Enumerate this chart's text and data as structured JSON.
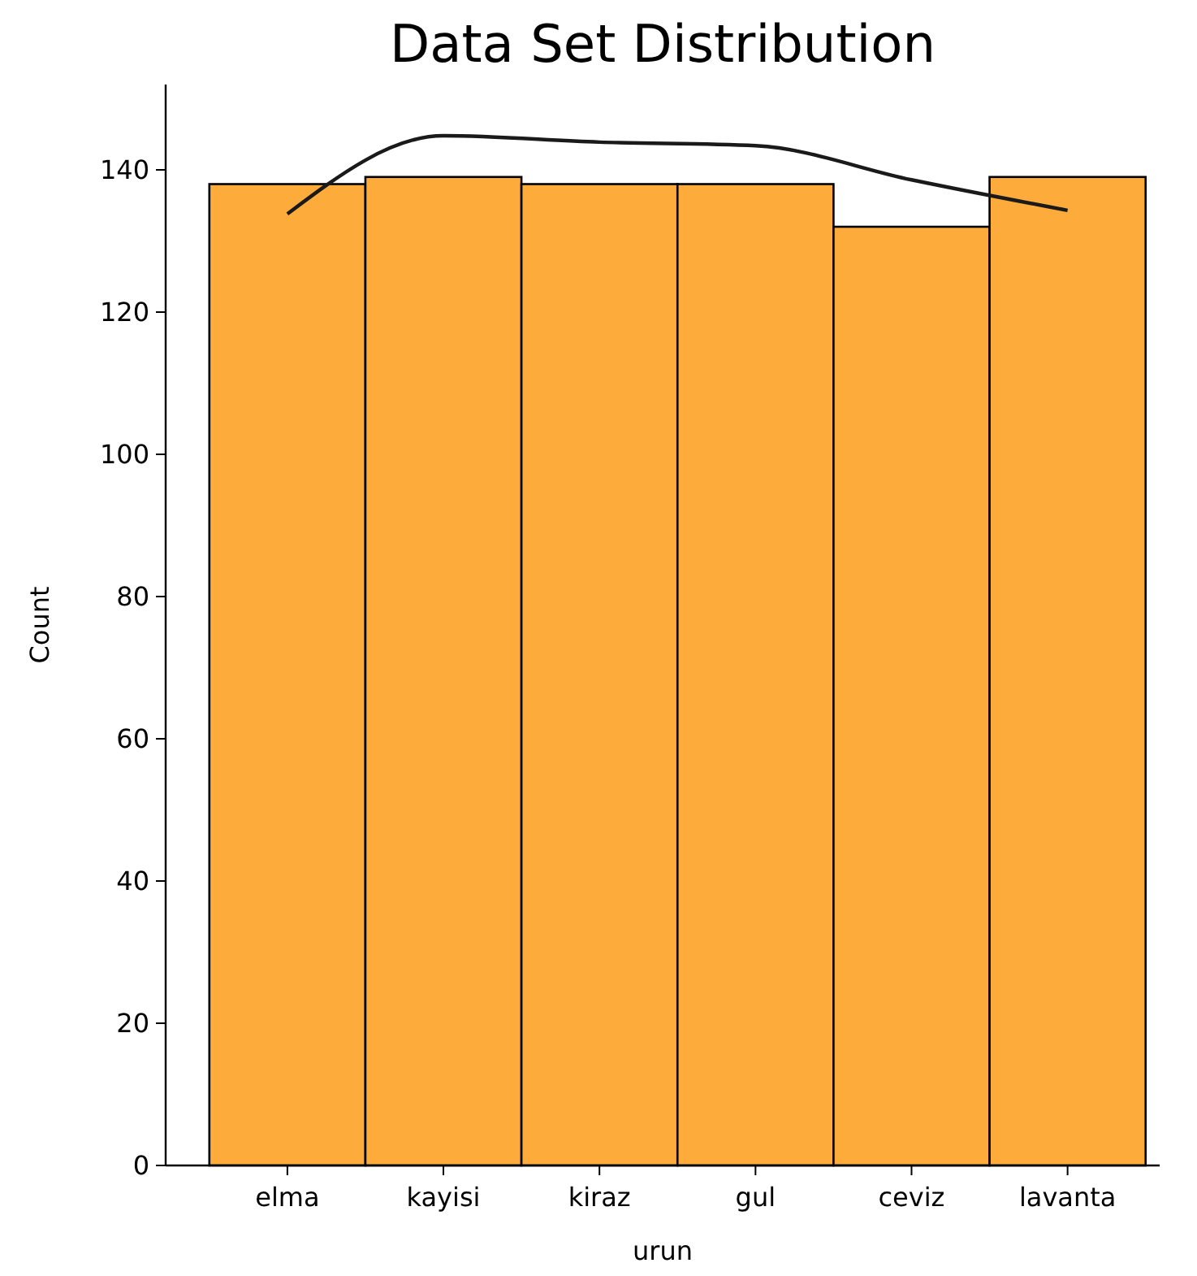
{
  "chart_data": {
    "type": "bar",
    "title": "Data Set Distribution",
    "xlabel": "urun",
    "ylabel": "Count",
    "categories": [
      "elma",
      "kayisi",
      "kiraz",
      "gul",
      "ceviz",
      "lavanta"
    ],
    "ylim": [
      0,
      152
    ],
    "yticks": [
      0,
      20,
      40,
      60,
      80,
      100,
      120,
      140
    ],
    "series": [
      {
        "color": "#fdab3a",
        "values": [
          138,
          139,
          138,
          138,
          132,
          139
        ]
      },
      {
        "type": "line",
        "color": "#1a1a1a",
        "values": [
          133.8,
          144.8,
          143.9,
          143.4,
          138.6,
          134.3
        ]
      }
    ]
  }
}
